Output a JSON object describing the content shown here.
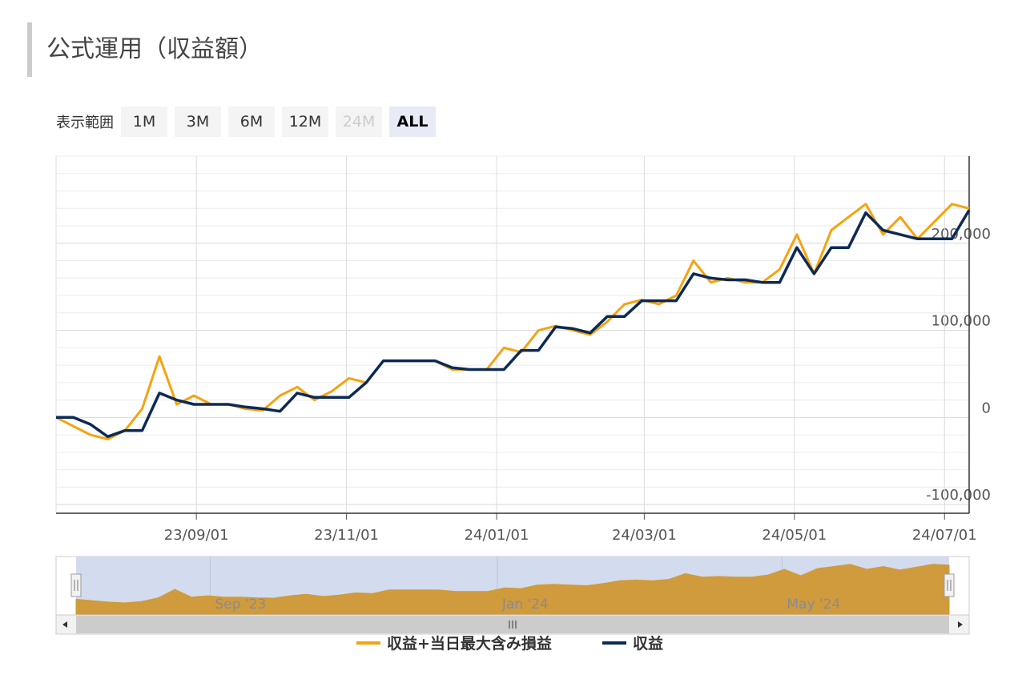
{
  "header": {
    "title": "公式運用（収益額）"
  },
  "range_selector": {
    "label": "表示範囲",
    "buttons": [
      "1M",
      "3M",
      "6M",
      "12M",
      "24M",
      "ALL"
    ],
    "disabled": "24M",
    "active": "ALL"
  },
  "chart_data": {
    "type": "line",
    "x": [
      "2023-07-06",
      "2023-07-13",
      "2023-07-20",
      "2023-07-27",
      "2023-08-03",
      "2023-08-10",
      "2023-08-17",
      "2023-08-24",
      "2023-08-31",
      "2023-09-07",
      "2023-09-14",
      "2023-09-21",
      "2023-09-28",
      "2023-10-05",
      "2023-10-12",
      "2023-10-19",
      "2023-10-26",
      "2023-11-02",
      "2023-11-09",
      "2023-11-16",
      "2023-11-23",
      "2023-11-30",
      "2023-12-07",
      "2023-12-14",
      "2023-12-21",
      "2023-12-28",
      "2024-01-04",
      "2024-01-11",
      "2024-01-18",
      "2024-01-25",
      "2024-02-01",
      "2024-02-08",
      "2024-02-15",
      "2024-02-22",
      "2024-02-29",
      "2024-03-07",
      "2024-03-14",
      "2024-03-21",
      "2024-03-28",
      "2024-04-04",
      "2024-04-11",
      "2024-04-18",
      "2024-04-25",
      "2024-05-02",
      "2024-05-09",
      "2024-05-16",
      "2024-05-23",
      "2024-05-30",
      "2024-06-06",
      "2024-06-13",
      "2024-06-20",
      "2024-06-27",
      "2024-07-04",
      "2024-07-11"
    ],
    "series": [
      {
        "name": "収益+当日最大含み損益",
        "color": "#f5a30f",
        "values": [
          0,
          -10000,
          -20000,
          -25000,
          -15000,
          10000,
          70000,
          15000,
          25000,
          15000,
          15000,
          10000,
          8000,
          25000,
          35000,
          20000,
          30000,
          45000,
          40000,
          65000,
          65000,
          65000,
          65000,
          55000,
          55000,
          55000,
          80000,
          75000,
          100000,
          105000,
          100000,
          95000,
          110000,
          130000,
          135000,
          130000,
          140000,
          180000,
          155000,
          160000,
          155000,
          155000,
          170000,
          210000,
          165000,
          215000,
          230000,
          245000,
          210000,
          230000,
          205000,
          225000,
          245000,
          240000
        ]
      },
      {
        "name": "収益",
        "color": "#0d2a56",
        "values": [
          0,
          0,
          -8000,
          -22000,
          -15000,
          -15000,
          28000,
          20000,
          15000,
          15000,
          15000,
          12000,
          10000,
          7000,
          28000,
          23000,
          23000,
          23000,
          40000,
          65000,
          65000,
          65000,
          65000,
          57000,
          55000,
          55000,
          55000,
          77000,
          77000,
          104000,
          102000,
          97000,
          116000,
          116000,
          134000,
          134000,
          134000,
          165000,
          160000,
          158000,
          158000,
          155000,
          155000,
          195000,
          165000,
          195000,
          195000,
          235000,
          215000,
          210000,
          205000,
          205000,
          205000,
          238000
        ]
      }
    ],
    "xlim": [
      "2023-07-06",
      "2024-07-11"
    ],
    "xticks": [
      {
        "value": "2023-09-01",
        "label": "23/09/01"
      },
      {
        "value": "2023-11-01",
        "label": "23/11/01"
      },
      {
        "value": "2024-01-01",
        "label": "24/01/01"
      },
      {
        "value": "2024-03-01",
        "label": "24/03/01"
      },
      {
        "value": "2024-05-01",
        "label": "24/05/01"
      },
      {
        "value": "2024-07-01",
        "label": "24/07/01"
      }
    ],
    "ylim": [
      -110000,
      300000
    ],
    "yticks": [
      {
        "value": -100000,
        "label": "-100,000"
      },
      0,
      {
        "value": 100000,
        "label": "100,000"
      },
      {
        "value": 200000,
        "label": "200,000"
      }
    ],
    "y_minor_ticks": [
      -100000,
      -80000,
      -60000,
      -40000,
      -20000,
      0,
      20000,
      40000,
      60000,
      80000,
      100000,
      120000,
      140000,
      160000,
      180000,
      200000,
      220000,
      240000,
      260000,
      280000,
      300000
    ],
    "grid": true,
    "legend": "bottom",
    "navigator": {
      "labels": [
        {
          "value": "2023-09-01",
          "label": "Sep '23"
        },
        {
          "value": "2024-01-01",
          "label": "Jan '24"
        },
        {
          "value": "2024-05-01",
          "label": "May '24"
        }
      ],
      "color": "#cf9b3c"
    }
  }
}
